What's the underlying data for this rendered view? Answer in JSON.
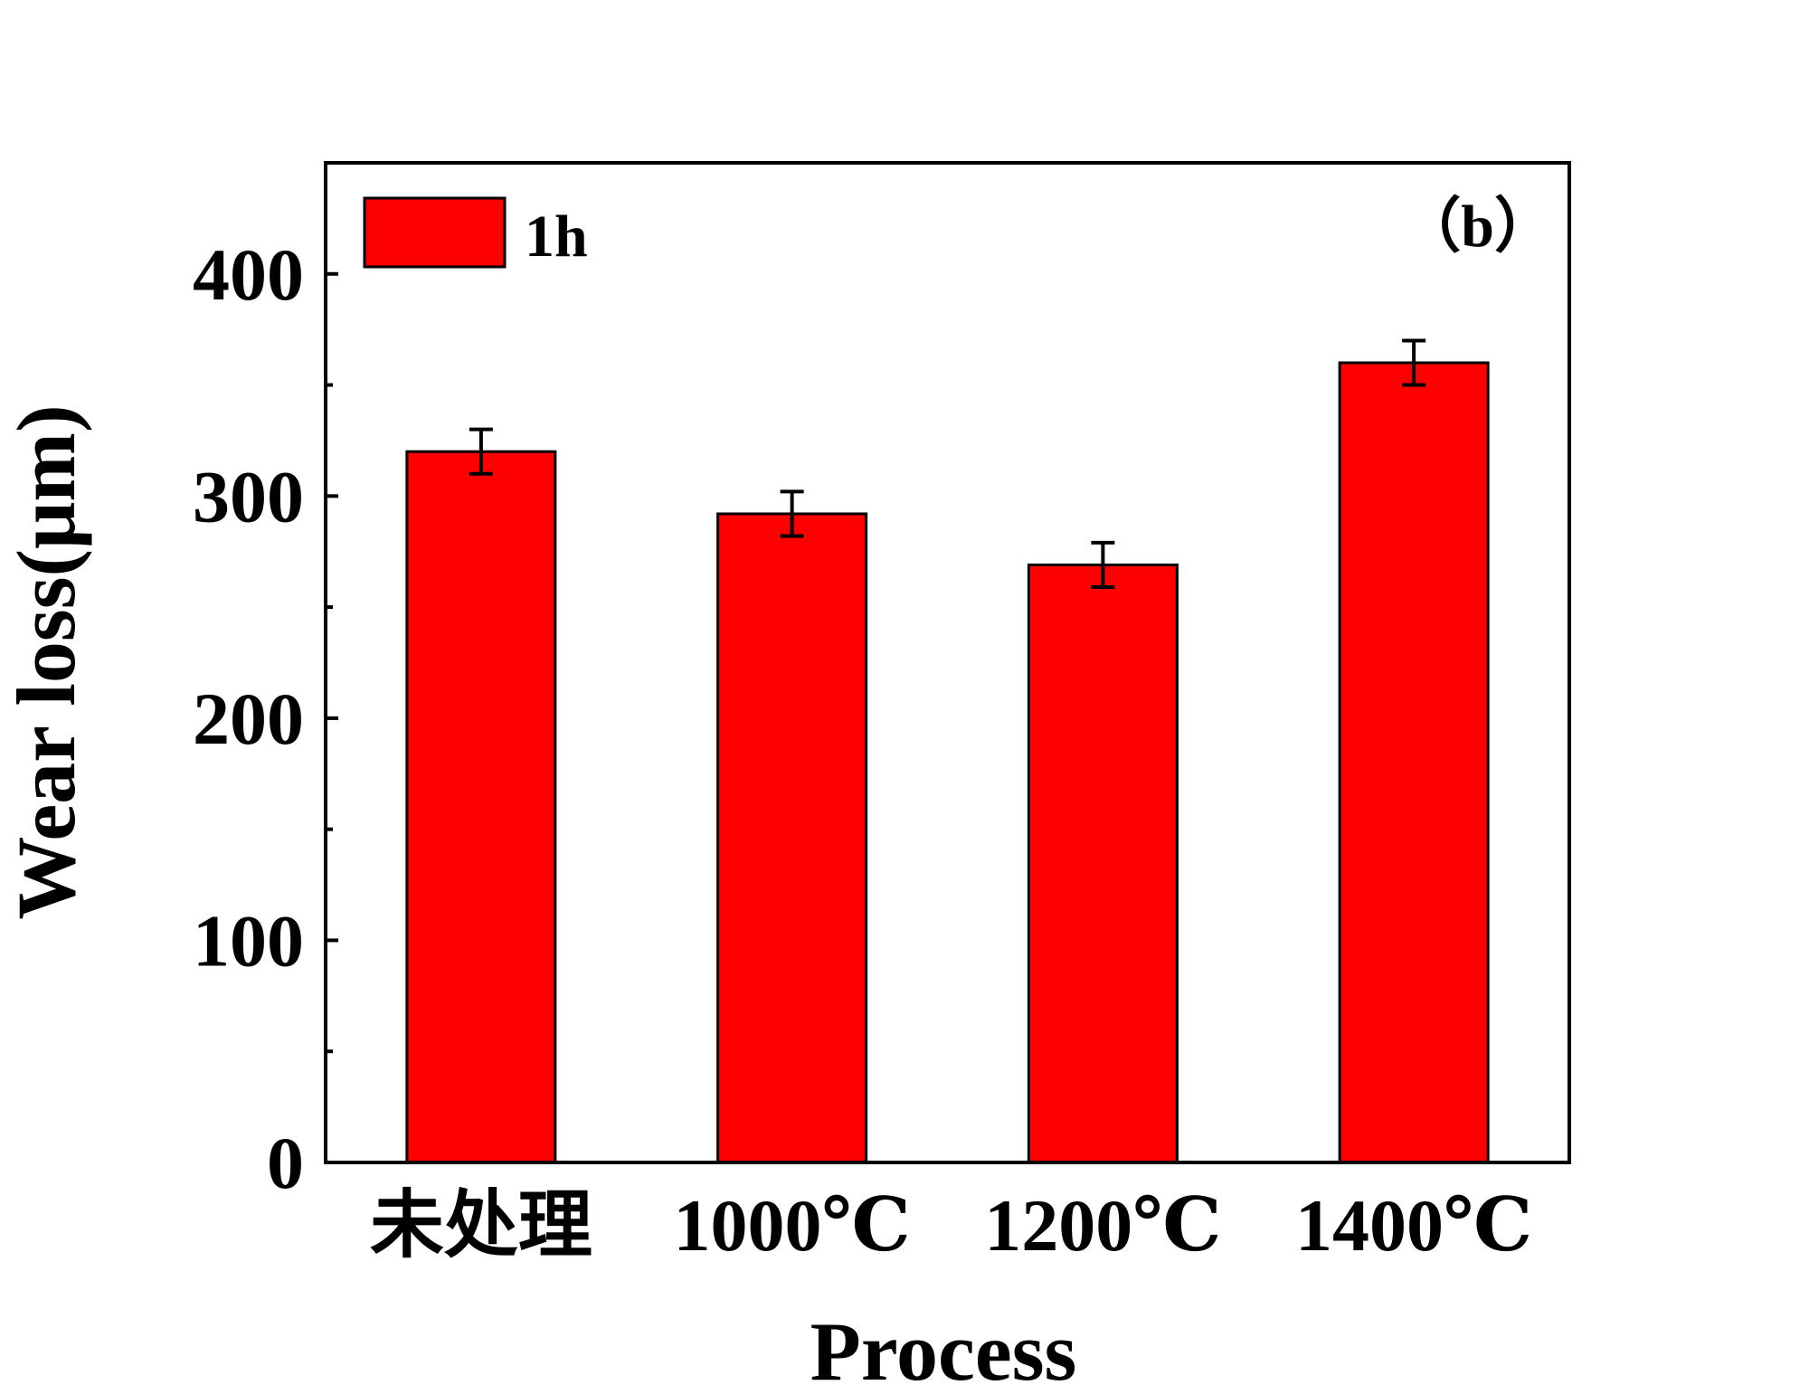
{
  "colors": {
    "bar_fill": "#ff0000",
    "bar_stroke": "#000000",
    "axis": "#000000",
    "background": "#ffffff"
  },
  "panel_label": "（b）",
  "chart_data": {
    "type": "bar",
    "categories": [
      "未处理",
      "1000℃",
      "1200℃",
      "1400℃"
    ],
    "series": [
      {
        "name": "1h",
        "values": [
          320,
          292,
          269,
          360
        ],
        "errors": [
          10,
          10,
          10,
          10
        ]
      }
    ],
    "xlabel": "Process",
    "ylabel": "Wear loss(μm)",
    "ylim": [
      0,
      450
    ],
    "yticks": [
      0,
      100,
      200,
      300,
      400
    ],
    "y_minor_ticks": [
      50,
      150,
      250,
      350
    ],
    "grid": false,
    "legend_position": "top-left"
  }
}
